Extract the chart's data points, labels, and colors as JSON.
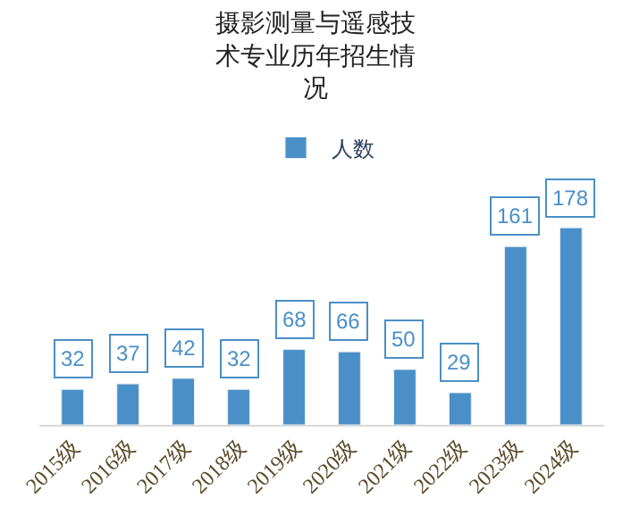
{
  "chart_data": {
    "type": "bar",
    "title": "摄影测量与遥感技术专业历年招生情况",
    "categories": [
      "2015级",
      "2016级",
      "2017级",
      "2018级",
      "2019级",
      "2020级",
      "2021级",
      "2022级",
      "2023级",
      "2024级"
    ],
    "series": [
      {
        "name": "人数",
        "color": "#4a8fc7",
        "values": [
          32,
          37,
          42,
          32,
          68,
          66,
          50,
          29,
          161,
          178
        ]
      }
    ],
    "data_labels": true,
    "legend": "top"
  }
}
